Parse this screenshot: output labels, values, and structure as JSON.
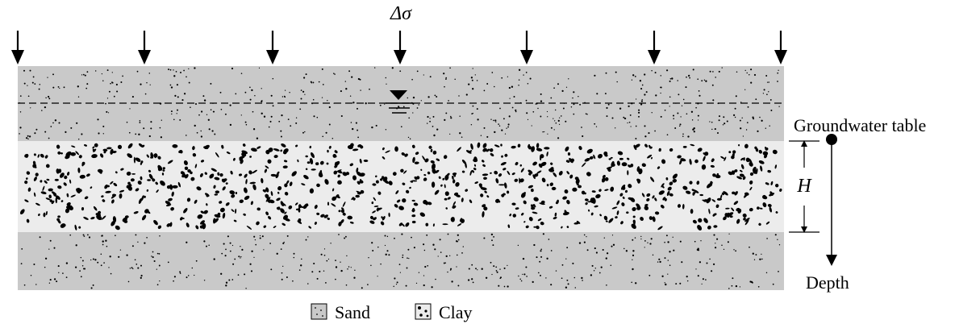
{
  "figure": {
    "load_label": "Δσ",
    "groundwater_label": "Groundwater table",
    "thickness_label": "H",
    "depth_label": "Depth",
    "legend": {
      "sand_label": "Sand",
      "clay_label": "Clay"
    }
  },
  "colors": {
    "sand": "#c9c9c9",
    "clay": "#ececec",
    "ink": "#000000"
  }
}
